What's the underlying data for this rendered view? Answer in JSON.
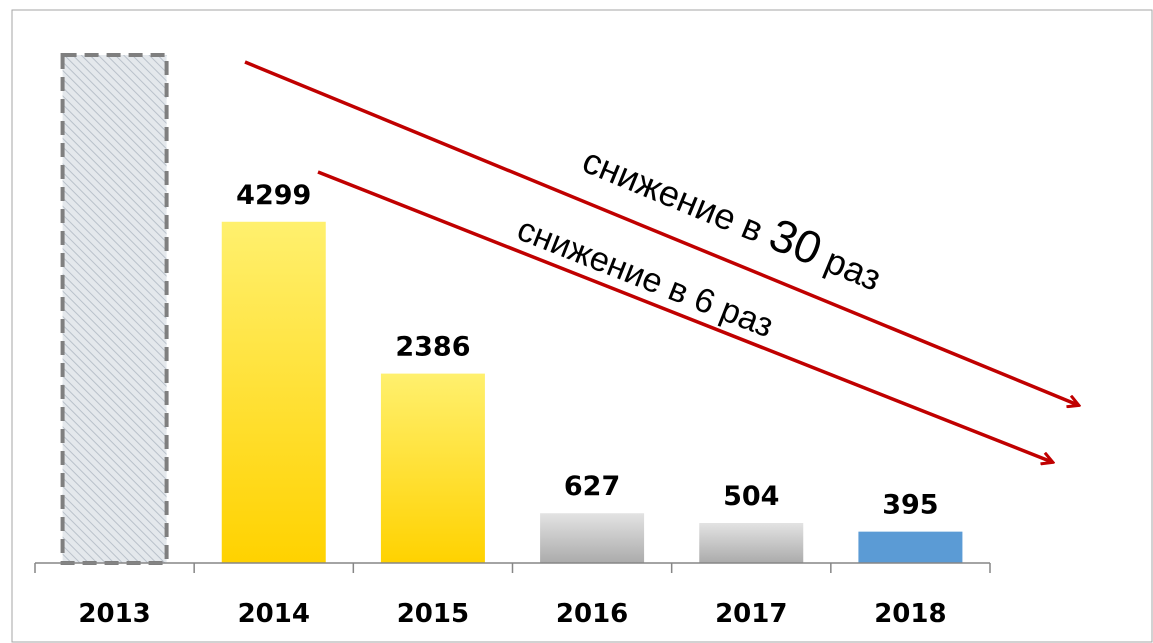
{
  "chart_data": {
    "type": "bar",
    "categories": [
      "2013",
      "2014",
      "2015",
      "2016",
      "2017",
      "2018"
    ],
    "values": [
      6400,
      4299,
      2386,
      627,
      504,
      395
    ],
    "value_labels": [
      null,
      "4299",
      "2386",
      "627",
      "504",
      "395"
    ],
    "colors": [
      "#d3d8de",
      "#ffd200",
      "#ffd200",
      "#ababab",
      "#ababab",
      "#5b9bd5"
    ],
    "ylim": [
      0,
      6400
    ],
    "annotations": [
      {
        "parts": [
          "снижение в ",
          "30",
          " раз"
        ],
        "color": "#c00000"
      },
      {
        "parts": [
          "снижение в 6 раз"
        ],
        "color": "#c00000"
      }
    ]
  }
}
